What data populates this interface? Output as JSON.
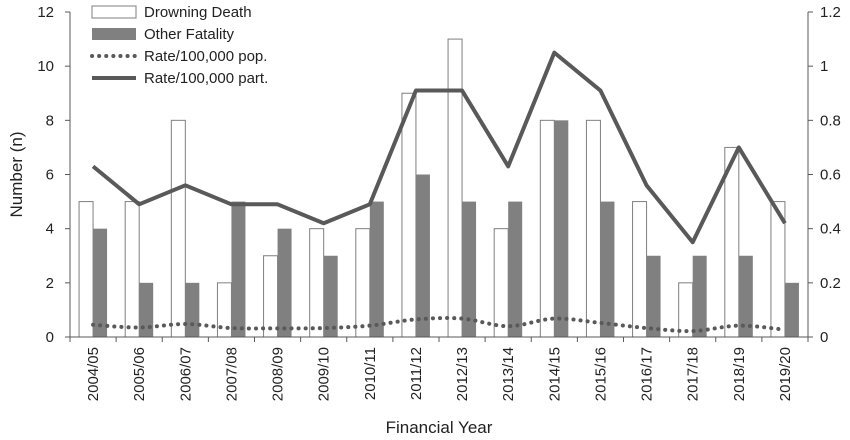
{
  "chart_data": {
    "type": "bar",
    "categories": [
      "2004/05",
      "2005/06",
      "2006/07",
      "2007/08",
      "2008/09",
      "2009/10",
      "2010/11",
      "2011/12",
      "2012/13",
      "2013/14",
      "2014/15",
      "2015/16",
      "2016/17",
      "2017/18",
      "2018/19",
      "2019/20"
    ],
    "series": [
      {
        "name": "Drowning Death",
        "type": "bar",
        "axis": "left",
        "style": "outline",
        "values": [
          5,
          5,
          8,
          2,
          3,
          4,
          4,
          9,
          11,
          4,
          8,
          8,
          5,
          2,
          7,
          5
        ]
      },
      {
        "name": "Other Fatality",
        "type": "bar",
        "axis": "left",
        "style": "filled",
        "values": [
          4,
          2,
          2,
          5,
          4,
          3,
          5,
          6,
          5,
          5,
          8,
          5,
          3,
          3,
          3,
          2
        ]
      },
      {
        "name": "Rate/100,000 pop.",
        "type": "line",
        "axis": "right",
        "style": "dotted",
        "values": [
          0.045,
          0.035,
          0.048,
          0.033,
          0.032,
          0.033,
          0.042,
          0.065,
          0.068,
          0.04,
          0.068,
          0.052,
          0.033,
          0.022,
          0.042,
          0.027
        ]
      },
      {
        "name": "Rate/100,000 part.",
        "type": "line",
        "axis": "right",
        "style": "solid",
        "values": [
          0.63,
          0.49,
          0.56,
          0.49,
          0.49,
          0.42,
          0.49,
          0.91,
          0.91,
          0.63,
          1.05,
          0.91,
          0.56,
          0.35,
          0.7,
          0.42
        ]
      }
    ],
    "xlabel": "Financial Year",
    "ylabel": "Number (n)",
    "ylim": [
      0,
      12
    ],
    "yticks": [
      "0",
      "2",
      "4",
      "6",
      "8",
      "10",
      "12"
    ],
    "y2lim": [
      0,
      1.2
    ],
    "y2ticks": [
      "0",
      "0.2",
      "0.4",
      "0.6",
      "0.8",
      "1",
      "1.2"
    ],
    "legend": "top-left",
    "grid": false,
    "colors": {
      "filled_bar": "#808080",
      "outline_bar_stroke": "#7f7f7f",
      "line": "#595959",
      "axis": "#595959"
    }
  }
}
